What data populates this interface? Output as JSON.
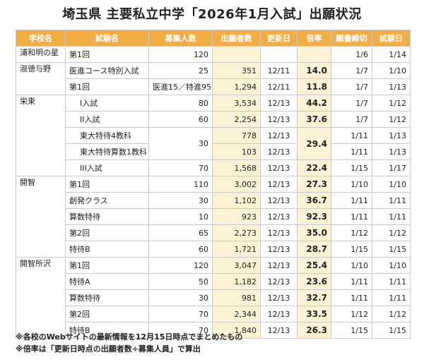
{
  "title": "埼玉県 主要私立中学「2026年1月入試」出願状況",
  "headers": [
    "学校名",
    "試験名",
    "募集人数",
    "出願者数",
    "更新日",
    "倍率",
    "願書締切",
    "試験日"
  ],
  "schools": [
    {
      "name": "浦和明の星"
    },
    {
      "name": "淑徳与野"
    },
    {
      "name": "栄東"
    },
    {
      "name": "開智"
    },
    {
      "name": "開智所沢"
    }
  ],
  "rows": [
    {
      "exam": "第1回",
      "capacity": "120",
      "applicants": "",
      "updated": "",
      "ratio": "",
      "deadline": "1/6",
      "date": "1/14"
    },
    {
      "exam": "医進コース特別入試",
      "capacity": "25",
      "applicants": "351",
      "updated": "12/11",
      "ratio": "14.0",
      "deadline": "1/7",
      "date": "1/10"
    },
    {
      "exam": "第1回",
      "capacity": "医進15／特進95",
      "applicants": "1,294",
      "updated": "12/11",
      "ratio": "11.8",
      "deadline": "1/7",
      "date": "1/13"
    },
    {
      "exam": "I入試",
      "capacity": "80",
      "applicants": "3,534",
      "updated": "12/13",
      "ratio": "44.2",
      "deadline": "1/7",
      "date": "1/12"
    },
    {
      "exam": "II入試",
      "capacity": "60",
      "applicants": "2,254",
      "updated": "12/13",
      "ratio": "37.6",
      "deadline": "1/7",
      "date": "1/12"
    },
    {
      "exam": "東大特待4教科",
      "capacity": "30",
      "applicants": "778",
      "updated": "12/13",
      "ratio": "29.4",
      "deadline": "1/11",
      "date": "1/13"
    },
    {
      "exam": "東大特待算数1教科",
      "capacity": "",
      "applicants": "103",
      "updated": "12/13",
      "ratio": "",
      "deadline": "1/11",
      "date": "1/13"
    },
    {
      "exam": "III入試",
      "capacity": "70",
      "applicants": "1,568",
      "updated": "12/13",
      "ratio": "22.4",
      "deadline": "1/15",
      "date": "1/17"
    },
    {
      "exam": "第1回",
      "capacity": "110",
      "applicants": "3,002",
      "updated": "12/13",
      "ratio": "27.3",
      "deadline": "1/10",
      "date": "1/10"
    },
    {
      "exam": "創発クラス",
      "capacity": "30",
      "applicants": "1,102",
      "updated": "12/13",
      "ratio": "36.7",
      "deadline": "1/11",
      "date": "1/11"
    },
    {
      "exam": "算数特待",
      "capacity": "10",
      "applicants": "923",
      "updated": "12/13",
      "ratio": "92.3",
      "deadline": "1/11",
      "date": "1/11"
    },
    {
      "exam": "第2回",
      "capacity": "65",
      "applicants": "2,273",
      "updated": "12/13",
      "ratio": "35.0",
      "deadline": "1/12",
      "date": "1/12"
    },
    {
      "exam": "特待B",
      "capacity": "60",
      "applicants": "1,721",
      "updated": "12/13",
      "ratio": "28.7",
      "deadline": "1/15",
      "date": "1/15"
    },
    {
      "exam": "第1回",
      "capacity": "120",
      "applicants": "3,047",
      "updated": "12/13",
      "ratio": "25.4",
      "deadline": "1/10",
      "date": "1/10"
    },
    {
      "exam": "特待A",
      "capacity": "50",
      "applicants": "1,182",
      "updated": "12/13",
      "ratio": "23.6",
      "deadline": "1/11",
      "date": "1/11"
    },
    {
      "exam": "算数特待",
      "capacity": "30",
      "applicants": "981",
      "updated": "12/13",
      "ratio": "32.7",
      "deadline": "1/11",
      "date": "1/11"
    },
    {
      "exam": "第2回",
      "capacity": "70",
      "applicants": "2,344",
      "updated": "12/13",
      "ratio": "33.5",
      "deadline": "1/12",
      "date": "1/12"
    },
    {
      "exam": "特待B",
      "capacity": "70",
      "applicants": "1,840",
      "updated": "12/13",
      "ratio": "26.3",
      "deadline": "1/15",
      "date": "1/15"
    }
  ],
  "notes": [
    "※各校のWebサイトの最新情報を12月15日時点でまとめたもの",
    "※倍率は「更新日時点の出願者数÷募集人員」で算出"
  ]
}
